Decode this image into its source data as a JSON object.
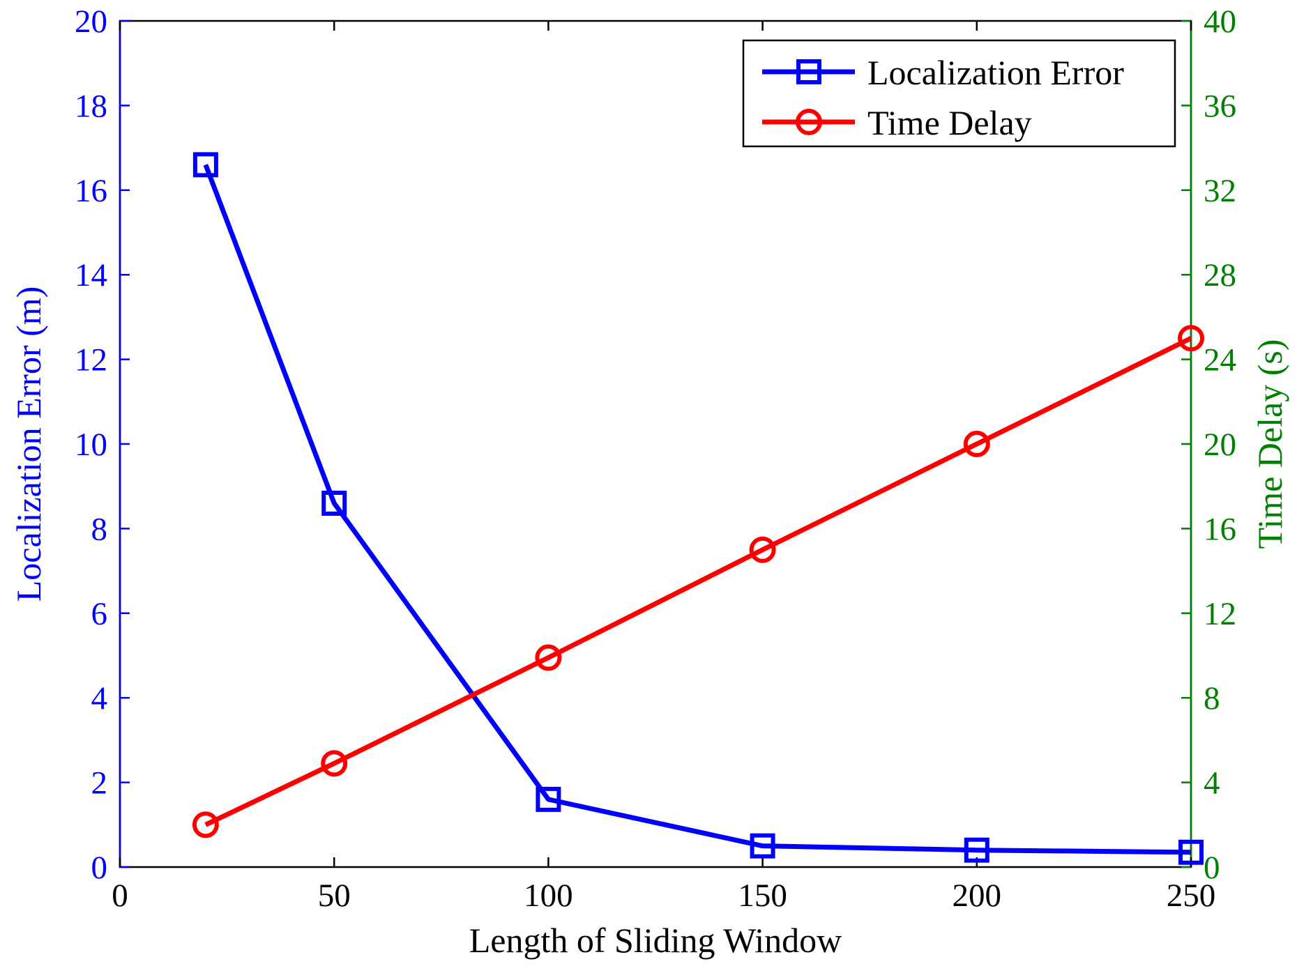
{
  "chart_data": {
    "type": "line",
    "x_axis": {
      "label": "Length of Sliding Window",
      "range": [
        0,
        250
      ],
      "ticks": [
        0,
        50,
        100,
        150,
        200,
        250
      ]
    },
    "y_axis_left": {
      "label": "Localization Error (m)",
      "range": [
        0,
        20
      ],
      "ticks": [
        0,
        2,
        4,
        6,
        8,
        10,
        12,
        14,
        16,
        18,
        20
      ],
      "color": "#0000ff"
    },
    "y_axis_right": {
      "label": "Time Delay (s)",
      "range": [
        0,
        40
      ],
      "ticks": [
        0,
        4,
        8,
        12,
        16,
        20,
        24,
        28,
        32,
        36,
        40
      ],
      "color": "#008000"
    },
    "series": [
      {
        "name": "Localization Error",
        "axis": "left",
        "color": "#0000ff",
        "marker": "square",
        "x": [
          20,
          50,
          100,
          150,
          200,
          250
        ],
        "values": [
          16.6,
          8.6,
          1.6,
          0.5,
          0.4,
          0.35
        ]
      },
      {
        "name": "Time Delay",
        "axis": "right",
        "color": "#ff0000",
        "marker": "circle",
        "x": [
          20,
          50,
          100,
          150,
          200,
          250
        ],
        "values": [
          2,
          4.9,
          9.9,
          15,
          20,
          25
        ]
      }
    ],
    "legend_position": "top-right",
    "grid": false
  }
}
